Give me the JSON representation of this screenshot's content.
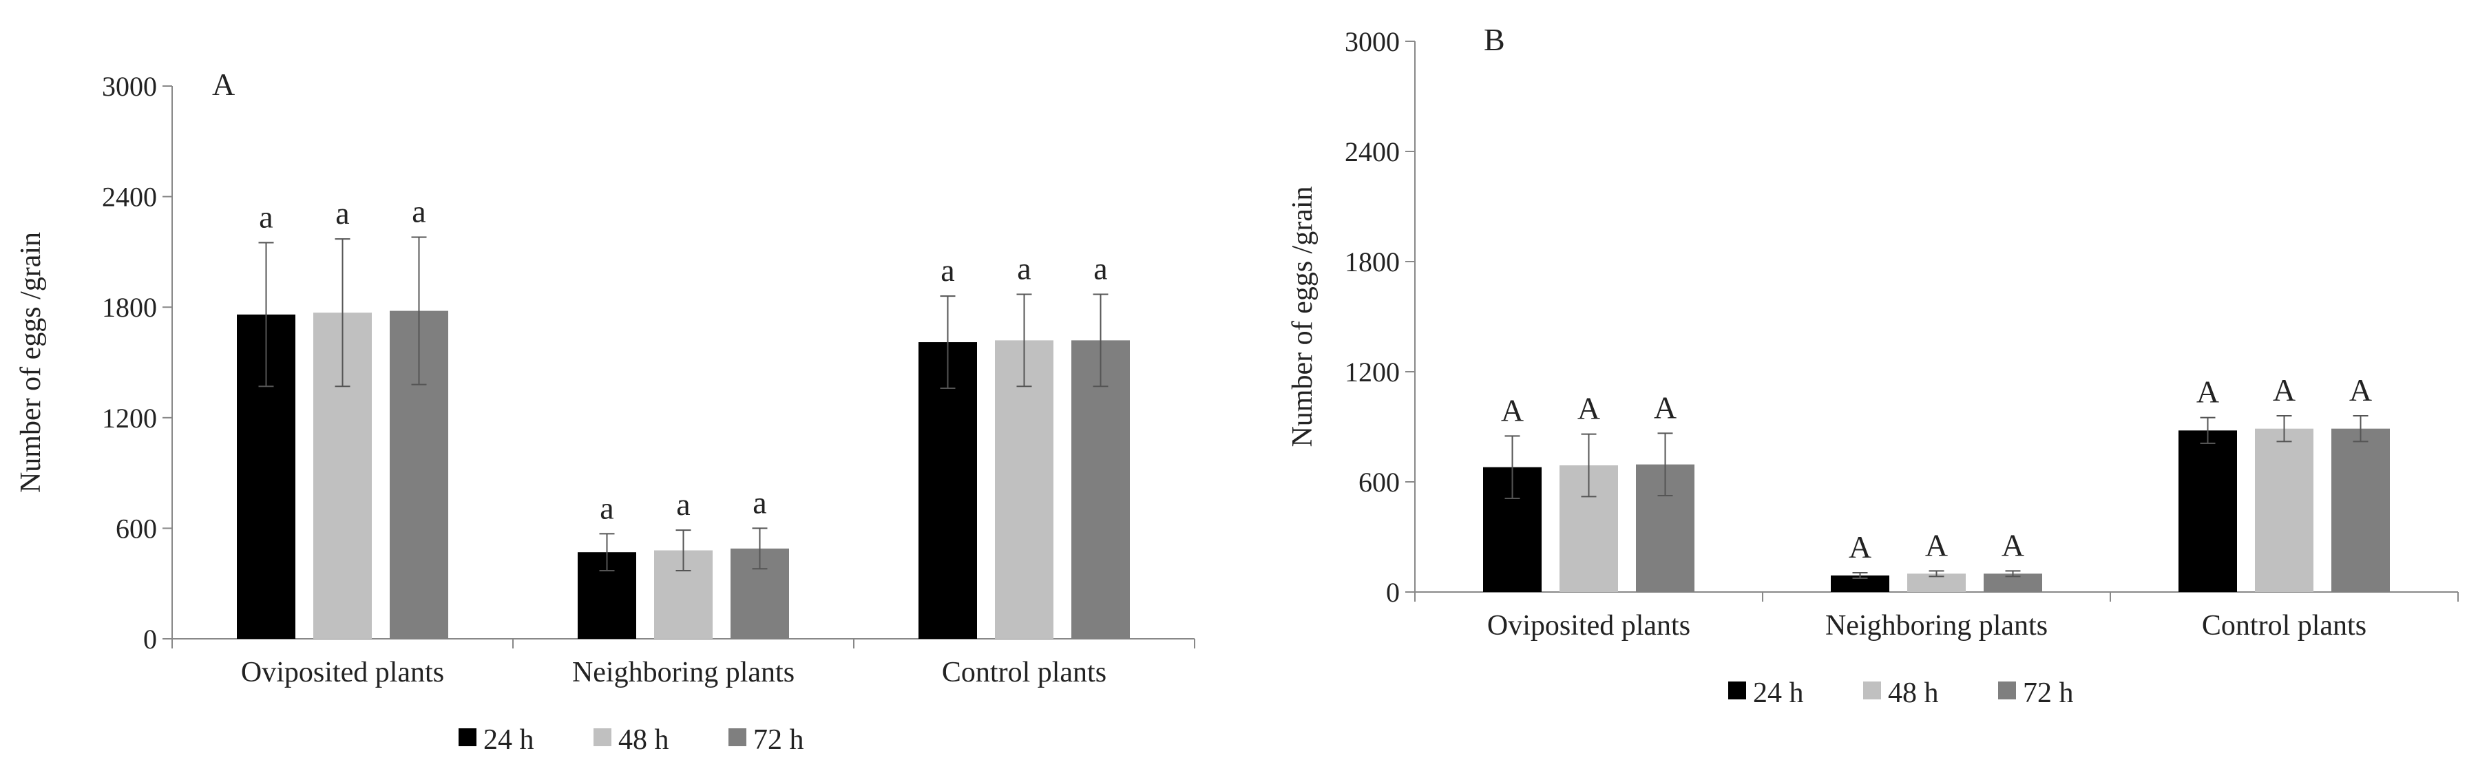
{
  "chart_data": [
    {
      "type": "bar",
      "panel_label": "A",
      "ylabel": "Number of eggs /grain",
      "ylim": [
        0,
        3000
      ],
      "yticks": [
        0,
        600,
        1200,
        1800,
        2400,
        3000
      ],
      "categories": [
        "Oviposited plants",
        "Neighboring plants",
        "Control plants"
      ],
      "series": [
        {
          "name": "24 h",
          "color": "#000000",
          "values": [
            1760,
            470,
            1610
          ],
          "errors": [
            390,
            100,
            250
          ],
          "letters": [
            "a",
            "a",
            "a"
          ]
        },
        {
          "name": "48 h",
          "color": "#c0c0c0",
          "values": [
            1770,
            480,
            1620
          ],
          "errors": [
            400,
            110,
            250
          ],
          "letters": [
            "a",
            "a",
            "a"
          ]
        },
        {
          "name": "72 h",
          "color": "#7f7f7f",
          "values": [
            1780,
            490,
            1620
          ],
          "errors": [
            400,
            110,
            250
          ],
          "letters": [
            "a",
            "a",
            "a"
          ]
        }
      ],
      "legend": [
        "24 h",
        "48 h",
        "72 h"
      ],
      "legend_position": "bottom"
    },
    {
      "type": "bar",
      "panel_label": "B",
      "ylabel": "Number of eggs /grain",
      "ylim": [
        0,
        3000
      ],
      "yticks": [
        0,
        600,
        1200,
        1800,
        2400,
        3000
      ],
      "categories": [
        "Oviposited plants",
        "Neighboring plants",
        "Control plants"
      ],
      "series": [
        {
          "name": "24 h",
          "color": "#000000",
          "values": [
            680,
            90,
            880
          ],
          "errors": [
            170,
            15,
            70
          ],
          "letters": [
            "A",
            "A",
            "A"
          ]
        },
        {
          "name": "48 h",
          "color": "#c0c0c0",
          "values": [
            690,
            100,
            890
          ],
          "errors": [
            170,
            15,
            70
          ],
          "letters": [
            "A",
            "A",
            "A"
          ]
        },
        {
          "name": "72 h",
          "color": "#7f7f7f",
          "values": [
            695,
            100,
            890
          ],
          "errors": [
            170,
            15,
            70
          ],
          "letters": [
            "A",
            "A",
            "A"
          ]
        }
      ],
      "legend": [
        "24 h",
        "48 h",
        "72 h"
      ],
      "legend_position": "bottom"
    }
  ]
}
